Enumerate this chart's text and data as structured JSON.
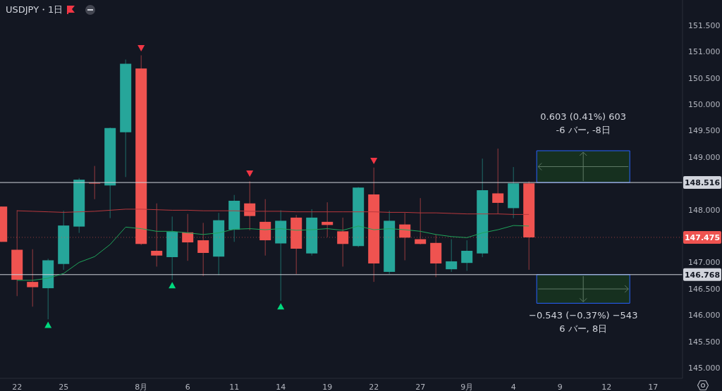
{
  "chart_data": {
    "type": "candlestick",
    "title": "USDJPY・1日",
    "categories": [
      null,
      "22",
      null,
      null,
      "25",
      null,
      null,
      null,
      null,
      "8月",
      null,
      null,
      "6",
      null,
      null,
      "11",
      null,
      null,
      "14",
      null,
      null,
      "19",
      null,
      null,
      "22",
      null,
      null,
      "27",
      null,
      null,
      "9月",
      null,
      null,
      "4",
      null,
      null,
      "9",
      null,
      null,
      "12",
      null,
      null,
      "17",
      null
    ],
    "ohlc": [
      [
        148.06,
        148.06,
        147.39,
        147.39
      ],
      [
        147.24,
        147.99,
        146.36,
        146.67
      ],
      [
        146.63,
        147.25,
        146.16,
        146.53
      ],
      [
        146.51,
        147.07,
        145.92,
        147.04
      ],
      [
        146.97,
        147.98,
        146.86,
        147.7
      ],
      [
        147.68,
        148.6,
        147.56,
        148.57
      ],
      [
        148.51,
        148.83,
        148.2,
        148.5
      ],
      [
        148.46,
        149.56,
        147.84,
        149.55
      ],
      [
        149.47,
        150.85,
        148.62,
        150.77
      ],
      [
        150.68,
        150.93,
        147.33,
        147.35
      ],
      [
        147.22,
        148.12,
        146.92,
        147.13
      ],
      [
        147.1,
        147.87,
        146.67,
        147.58
      ],
      [
        147.57,
        147.92,
        147.03,
        147.38
      ],
      [
        147.42,
        147.75,
        146.74,
        147.18
      ],
      [
        147.11,
        147.94,
        146.76,
        147.8
      ],
      [
        147.62,
        148.28,
        147.39,
        148.17
      ],
      [
        148.12,
        148.54,
        147.61,
        147.88
      ],
      [
        147.77,
        148.2,
        147.13,
        147.42
      ],
      [
        147.36,
        147.99,
        146.27,
        147.79
      ],
      [
        147.85,
        147.9,
        146.78,
        147.26
      ],
      [
        147.17,
        148.01,
        147.13,
        147.85
      ],
      [
        147.77,
        148.14,
        147.48,
        147.71
      ],
      [
        147.59,
        147.85,
        146.92,
        147.35
      ],
      [
        147.31,
        148.43,
        147.29,
        148.42
      ],
      [
        148.29,
        148.8,
        146.63,
        146.98
      ],
      [
        146.82,
        147.98,
        146.78,
        147.79
      ],
      [
        147.72,
        147.94,
        147.04,
        147.47
      ],
      [
        147.44,
        148.22,
        147.34,
        147.35
      ],
      [
        147.37,
        147.53,
        146.72,
        146.98
      ],
      [
        146.87,
        147.44,
        146.82,
        147.02
      ],
      [
        146.99,
        147.42,
        146.84,
        147.22
      ],
      [
        147.17,
        148.97,
        147.1,
        148.37
      ],
      [
        148.31,
        149.16,
        147.92,
        148.13
      ],
      [
        148.03,
        148.81,
        147.84,
        148.5
      ],
      [
        148.5,
        148.54,
        146.86,
        147.475
      ],
      null,
      null,
      null,
      null,
      null,
      null,
      null,
      null,
      null
    ],
    "colors": [
      "#ef5350",
      "#ef5350",
      "#ef5350",
      "#26a69a",
      "#26a69a",
      "#26a69a",
      "#ef5350",
      "#26a69a",
      "#26a69a",
      "#ef5350",
      "#ef5350",
      "#26a69a",
      "#ef5350",
      "#ef5350",
      "#26a69a",
      "#26a69a",
      "#ef5350",
      "#ef5350",
      "#26a69a",
      "#ef5350",
      "#26a69a",
      "#ef5350",
      "#ef5350",
      "#26a69a",
      "#ef5350",
      "#26a69a",
      "#ef5350",
      "#ef5350",
      "#ef5350",
      "#26a69a",
      "#26a69a",
      "#26a69a",
      "#ef5350",
      "#26a69a",
      "#ef5350",
      null,
      null,
      null,
      null,
      null,
      null,
      null,
      null,
      null
    ],
    "series": [
      {
        "type": "line",
        "color": "#b8383d",
        "values": [
          null,
          147.98,
          147.97,
          147.96,
          147.95,
          147.96,
          147.97,
          147.99,
          148.01,
          148.01,
          148.0,
          147.99,
          147.99,
          147.98,
          147.98,
          147.98,
          147.97,
          147.97,
          147.97,
          147.96,
          147.96,
          147.96,
          147.96,
          147.96,
          147.96,
          147.95,
          147.95,
          147.94,
          147.94,
          147.93,
          147.92,
          147.92,
          147.92,
          147.91,
          147.91,
          null,
          null,
          null,
          null,
          null,
          null,
          null,
          null,
          null
        ]
      },
      {
        "type": "line",
        "color": "#1fa55b",
        "values": [
          null,
          146.66,
          146.66,
          146.7,
          146.79,
          147.0,
          147.11,
          147.34,
          147.67,
          147.64,
          147.59,
          147.59,
          147.56,
          147.53,
          147.56,
          147.63,
          147.64,
          147.62,
          147.64,
          147.61,
          147.62,
          147.64,
          147.61,
          147.69,
          147.62,
          147.64,
          147.62,
          147.59,
          147.53,
          147.49,
          147.47,
          147.56,
          147.62,
          147.7,
          147.69,
          null,
          null,
          null,
          null,
          null,
          null,
          null,
          null,
          null
        ]
      },
      {
        "type": "scatter",
        "color": "#f23645",
        "marker": "triangle",
        "values": [
          null,
          null,
          null,
          null,
          null,
          null,
          null,
          null,
          null,
          151.07,
          null,
          null,
          null,
          null,
          null,
          null,
          148.69,
          null,
          null,
          null,
          null,
          null,
          null,
          null,
          148.93,
          null,
          null,
          null,
          null,
          null,
          null,
          null,
          null,
          null,
          null,
          null,
          null,
          null,
          null,
          null,
          null,
          null,
          null,
          null
        ]
      },
      {
        "type": "scatter",
        "color": "#00d97e",
        "marker": "triangle",
        "values": [
          null,
          null,
          null,
          145.81,
          null,
          null,
          null,
          null,
          null,
          null,
          null,
          146.56,
          null,
          null,
          null,
          null,
          null,
          null,
          146.16,
          null,
          null,
          null,
          null,
          null,
          null,
          null,
          null,
          null,
          null,
          null,
          null,
          null,
          null,
          null,
          null,
          null,
          null,
          null,
          null,
          null,
          null,
          null,
          null,
          null
        ]
      }
    ],
    "ylim": [
      144.8,
      151.98
    ],
    "yticks": [
      {
        "value": 145,
        "label": "145.000"
      },
      {
        "value": 145.5,
        "label": "145.500"
      },
      {
        "value": 146,
        "label": "146.000"
      },
      {
        "value": 146.5,
        "label": "146.500"
      },
      {
        "value": 147,
        "label": "147.000"
      },
      {
        "value": 148,
        "label": "148.000"
      },
      {
        "value": 149,
        "label": "149.000"
      },
      {
        "value": 149.5,
        "label": "149.500"
      },
      {
        "value": 150,
        "label": "150.000"
      },
      {
        "value": 150.5,
        "label": "150.500"
      },
      {
        "value": 151,
        "label": "151.000"
      },
      {
        "value": 151.5,
        "label": "151.500"
      }
    ],
    "ref_lines": [
      {
        "axis": "y",
        "value": 148.516,
        "label": "148.516",
        "color": "#d1d4dc",
        "line_style": "solid"
      },
      {
        "axis": "y",
        "value": 146.768,
        "label": "146.768",
        "color": "#d1d4dc",
        "line_style": "solid"
      },
      {
        "axis": "y",
        "value": 147.475,
        "label": "147.475",
        "color": "#ef5350",
        "line_style": "dotted"
      }
    ],
    "bands": [
      {
        "axis": "y",
        "from": 148.516,
        "to": 149.119,
        "color": "#16301f"
      },
      {
        "axis": "y",
        "from": 146.225,
        "to": 146.768,
        "color": "#16301f"
      }
    ],
    "annotations": [
      "0.603 (0.41%) 603",
      "-6 バー, -8日",
      {
        "text": "−0.543 (−0.37%) −543",
        "y": 146.225
      },
      "6 バー, 8日"
    ]
  }
}
